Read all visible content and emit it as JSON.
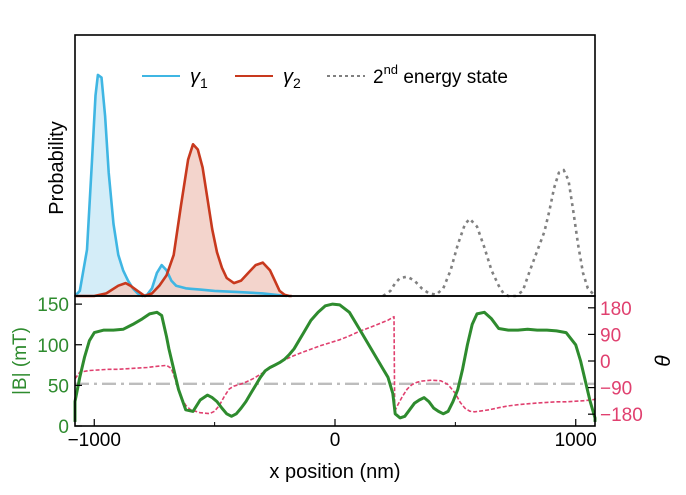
{
  "chart_data": [
    {
      "type": "area",
      "panel": "top",
      "ylabel": "Probability",
      "legend": {
        "placement": "top-center",
        "entries": [
          {
            "symbol": "γ",
            "sub": "1",
            "color": "#3fb6e3",
            "style": "solid"
          },
          {
            "symbol": "γ",
            "sub": "2",
            "color": "#c8391e",
            "style": "solid"
          },
          {
            "text": "2",
            "sup": "nd",
            "rest": " energy state",
            "color": "#808080",
            "style": "dotted"
          }
        ]
      },
      "xlim": [
        -1000,
        1000
      ],
      "series": [
        {
          "name": "γ1",
          "color": "#3fb6e3",
          "fill": "#cdeaf7",
          "x": [
            -1100,
            -1060,
            -1030,
            -1010,
            -995,
            -985,
            -970,
            -955,
            -940,
            -920,
            -900,
            -880,
            -860,
            -840,
            -820,
            -800,
            -780,
            -760,
            -740,
            -720,
            -700,
            -680,
            -660,
            -640,
            -620,
            -600,
            -560,
            -500,
            -400,
            -300,
            -200
          ],
          "y": [
            0,
            0.02,
            0.18,
            0.52,
            0.78,
            0.86,
            0.85,
            0.7,
            0.48,
            0.28,
            0.16,
            0.1,
            0.06,
            0.03,
            0.01,
            0.0,
            0.005,
            0.03,
            0.09,
            0.12,
            0.1,
            0.06,
            0.04,
            0.035,
            0.03,
            0.028,
            0.025,
            0.02,
            0.015,
            0.01,
            0
          ]
        },
        {
          "name": "γ2",
          "color": "#c8391e",
          "fill": "#f1cdc3",
          "x": [
            -1100,
            -1000,
            -950,
            -900,
            -870,
            -850,
            -820,
            -790,
            -760,
            -730,
            -700,
            -670,
            -640,
            -610,
            -590,
            -570,
            -550,
            -530,
            -510,
            -490,
            -470,
            -450,
            -420,
            -390,
            -360,
            -330,
            -300,
            -270,
            -250,
            -230,
            -210,
            -190,
            -180
          ],
          "y": [
            0,
            0,
            0.01,
            0.04,
            0.05,
            0.04,
            0.02,
            0.0,
            0.01,
            0.04,
            0.08,
            0.16,
            0.35,
            0.53,
            0.59,
            0.57,
            0.5,
            0.38,
            0.26,
            0.17,
            0.11,
            0.07,
            0.05,
            0.06,
            0.09,
            0.12,
            0.13,
            0.1,
            0.06,
            0.02,
            0.005,
            0,
            0
          ]
        },
        {
          "name": "2nd energy state",
          "color": "#808080",
          "style": "dotted",
          "x": [
            200,
            230,
            250,
            270,
            300,
            330,
            360,
            390,
            420,
            450,
            480,
            510,
            540,
            560,
            590,
            620,
            650,
            680,
            700,
            720,
            750,
            780,
            810,
            830,
            850,
            870,
            890,
            910,
            930,
            950,
            970,
            990,
            1010,
            1030,
            1050,
            1080
          ],
          "y": [
            0,
            0.02,
            0.05,
            0.07,
            0.075,
            0.06,
            0.03,
            0.01,
            0.005,
            0.03,
            0.1,
            0.2,
            0.28,
            0.3,
            0.27,
            0.19,
            0.1,
            0.04,
            0.01,
            0.0,
            0.0,
            0.02,
            0.1,
            0.15,
            0.2,
            0.25,
            0.33,
            0.42,
            0.48,
            0.49,
            0.45,
            0.33,
            0.2,
            0.09,
            0.03,
            0
          ]
        }
      ]
    },
    {
      "type": "line",
      "panel": "bottom",
      "xlabel": "x position (nm)",
      "xticks": [
        "−1000",
        "0",
        "1000"
      ],
      "ylabel": "|B| (mT)",
      "ylim": [
        0,
        160
      ],
      "yticks": [
        "0",
        "50",
        "100",
        "150"
      ],
      "y2label": "θ",
      "y2lim": [
        -220,
        220
      ],
      "y2ticks": [
        "180",
        "90",
        "0",
        "−90",
        "−180"
      ],
      "y2tick_values": [
        180,
        90,
        0,
        -90,
        -180
      ],
      "series": [
        {
          "name": "|B|",
          "axis": "left",
          "color": "#2e8b2e",
          "style": "solid",
          "x": [
            -1100,
            -1080,
            -1060,
            -1040,
            -1020,
            -1000,
            -960,
            -920,
            -880,
            -840,
            -800,
            -770,
            -740,
            -720,
            -700,
            -690,
            -670,
            -650,
            -620,
            -590,
            -560,
            -530,
            -510,
            -490,
            -470,
            -450,
            -430,
            -410,
            -390,
            -370,
            -350,
            -330,
            -310,
            -290,
            -270,
            -250,
            -230,
            -210,
            -190,
            -170,
            -150,
            -130,
            -100,
            -70,
            -40,
            -10,
            20,
            60,
            100,
            140,
            180,
            200,
            220,
            240,
            250,
            270,
            290,
            310,
            330,
            350,
            370,
            390,
            410,
            430,
            450,
            470,
            490,
            510,
            530,
            550,
            570,
            590,
            620,
            650,
            680,
            720,
            760,
            800,
            840,
            880,
            920,
            960,
            1000,
            1020,
            1040,
            1060,
            1080,
            1100
          ],
          "y": [
            5,
            30,
            60,
            85,
            105,
            115,
            118,
            118,
            119,
            125,
            132,
            138,
            140,
            136,
            110,
            95,
            70,
            45,
            20,
            18,
            32,
            38,
            35,
            30,
            22,
            15,
            12,
            15,
            22,
            30,
            40,
            50,
            60,
            68,
            72,
            75,
            78,
            82,
            88,
            95,
            105,
            115,
            130,
            140,
            148,
            150,
            149,
            140,
            120,
            100,
            80,
            70,
            60,
            40,
            15,
            10,
            12,
            20,
            28,
            32,
            35,
            30,
            22,
            18,
            15,
            18,
            30,
            45,
            70,
            100,
            125,
            138,
            140,
            132,
            120,
            118,
            118,
            119,
            118,
            118,
            117,
            115,
            100,
            80,
            55,
            30,
            10,
            5
          ]
        },
        {
          "name": "θ",
          "axis": "right",
          "color": "#e0406f",
          "style": "dashed",
          "x": [
            -1100,
            -1060,
            -1020,
            -980,
            -940,
            -900,
            -860,
            -820,
            -780,
            -740,
            -700,
            -680,
            -660,
            -640,
            -620,
            -600,
            -560,
            -520,
            -500,
            -480,
            -460,
            -440,
            -420,
            -380,
            -340,
            -300,
            -260,
            -220,
            -180,
            -140,
            -100,
            -60,
            -20,
            20,
            60,
            100,
            140,
            180,
            220,
            245,
            248,
            260,
            280,
            300,
            320,
            340,
            360,
            400,
            440,
            470,
            500,
            520,
            540,
            560,
            580,
            600,
            640,
            680,
            720,
            760,
            800,
            840,
            880,
            920,
            960,
            1000,
            1040,
            1080,
            1100
          ],
          "y": [
            -60,
            -38,
            -32,
            -30,
            -28,
            -28,
            -26,
            -24,
            -22,
            -18,
            -15,
            -25,
            -70,
            -120,
            -150,
            -165,
            -175,
            -178,
            -170,
            -150,
            -120,
            -95,
            -85,
            -75,
            -60,
            -40,
            -20,
            0,
            15,
            28,
            40,
            52,
            62,
            72,
            85,
            100,
            112,
            125,
            138,
            150,
            -170,
            -150,
            -120,
            -95,
            -80,
            -72,
            -68,
            -65,
            -67,
            -80,
            -110,
            -140,
            -160,
            -170,
            -172,
            -170,
            -165,
            -158,
            -152,
            -148,
            -145,
            -142,
            -140,
            -138,
            -138,
            -136,
            -134,
            -130,
            -125
          ]
        },
        {
          "name": "reference",
          "axis": "left",
          "color": "#bdbdbd",
          "style": "dashdot",
          "x": [
            -1100,
            1100
          ],
          "y": [
            52,
            52
          ]
        }
      ]
    }
  ]
}
